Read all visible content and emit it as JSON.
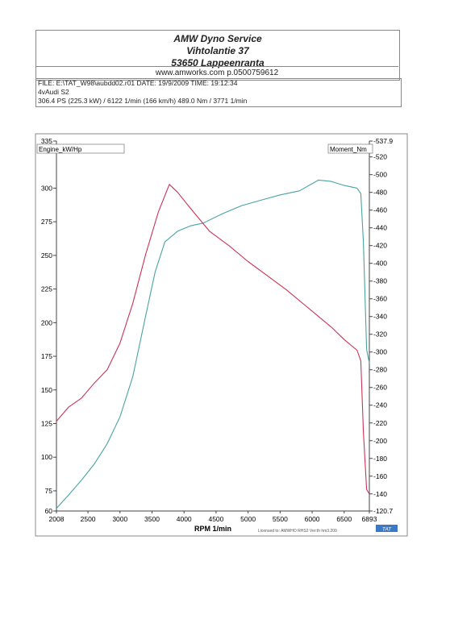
{
  "header": {
    "company": "AMW Dyno Service",
    "street": "Vihtolantie 37",
    "city": "53650 Lappeenranta",
    "web": "www.amworks.com p.0500759612"
  },
  "run_info": {
    "file_line": "FILE: E:\\TAT_W98\\aubdd02.r01  DATE: 19/9/2009  TIME: 19:12:34",
    "vehicle": "4vAudi S2",
    "result": "306.4 PS  (225.3 kW) / 6122 1/min (166 km/h)    489.0 Nm / 3771 1/min"
  },
  "footer": {
    "license": "Licensed to: AMWHO RHS2   Ver:th hm3.200",
    "logo": "TAT"
  },
  "chart_data": {
    "type": "line",
    "xlabel": "RPM  1/min",
    "left_axis_label": "Engine_kW/Hp",
    "right_axis_label": "Moment_Nm",
    "xlim": [
      2008,
      6893
    ],
    "ylim_left": [
      60,
      335
    ],
    "ylim_right": [
      120.7,
      537.9
    ],
    "x_ticks": [
      2008,
      2500,
      3000,
      3500,
      4000,
      4500,
      5000,
      5500,
      6000,
      6500,
      6893
    ],
    "y_ticks_left": [
      60,
      75,
      100,
      125,
      150,
      175,
      200,
      225,
      250,
      275,
      300,
      335
    ],
    "y_ticks_right": [
      120.7,
      140,
      160,
      180,
      200,
      220,
      240,
      260,
      280,
      300,
      320,
      340,
      360,
      380,
      400,
      420,
      440,
      460,
      480,
      500,
      520,
      537.9
    ],
    "grid": false,
    "series": [
      {
        "name": "Engine_kW/Hp",
        "axis": "left",
        "color": "#4aa3a3",
        "points": [
          [
            2008,
            62
          ],
          [
            2200,
            72
          ],
          [
            2400,
            83
          ],
          [
            2600,
            95
          ],
          [
            2800,
            110
          ],
          [
            3000,
            130
          ],
          [
            3200,
            160
          ],
          [
            3400,
            205
          ],
          [
            3550,
            238
          ],
          [
            3700,
            260
          ],
          [
            3900,
            268
          ],
          [
            4100,
            272
          ],
          [
            4300,
            274
          ],
          [
            4600,
            281
          ],
          [
            4900,
            287
          ],
          [
            5200,
            291
          ],
          [
            5500,
            295
          ],
          [
            5800,
            298
          ],
          [
            6100,
            306
          ],
          [
            6300,
            305
          ],
          [
            6500,
            302
          ],
          [
            6700,
            300
          ],
          [
            6760,
            296
          ],
          [
            6800,
            260
          ],
          [
            6850,
            180
          ],
          [
            6893,
            170
          ]
        ]
      },
      {
        "name": "Moment_Nm",
        "axis": "right",
        "color": "#cc3355",
        "points": [
          [
            2008,
            222
          ],
          [
            2200,
            238
          ],
          [
            2400,
            248
          ],
          [
            2600,
            265
          ],
          [
            2800,
            280
          ],
          [
            3000,
            310
          ],
          [
            3200,
            355
          ],
          [
            3400,
            410
          ],
          [
            3600,
            458
          ],
          [
            3771,
            489
          ],
          [
            3900,
            480
          ],
          [
            4100,
            462
          ],
          [
            4400,
            436
          ],
          [
            4700,
            420
          ],
          [
            5000,
            402
          ],
          [
            5300,
            386
          ],
          [
            5600,
            370
          ],
          [
            5900,
            352
          ],
          [
            6100,
            340
          ],
          [
            6300,
            328
          ],
          [
            6500,
            314
          ],
          [
            6700,
            302
          ],
          [
            6760,
            290
          ],
          [
            6800,
            210
          ],
          [
            6850,
            145
          ],
          [
            6893,
            140
          ]
        ]
      }
    ]
  }
}
